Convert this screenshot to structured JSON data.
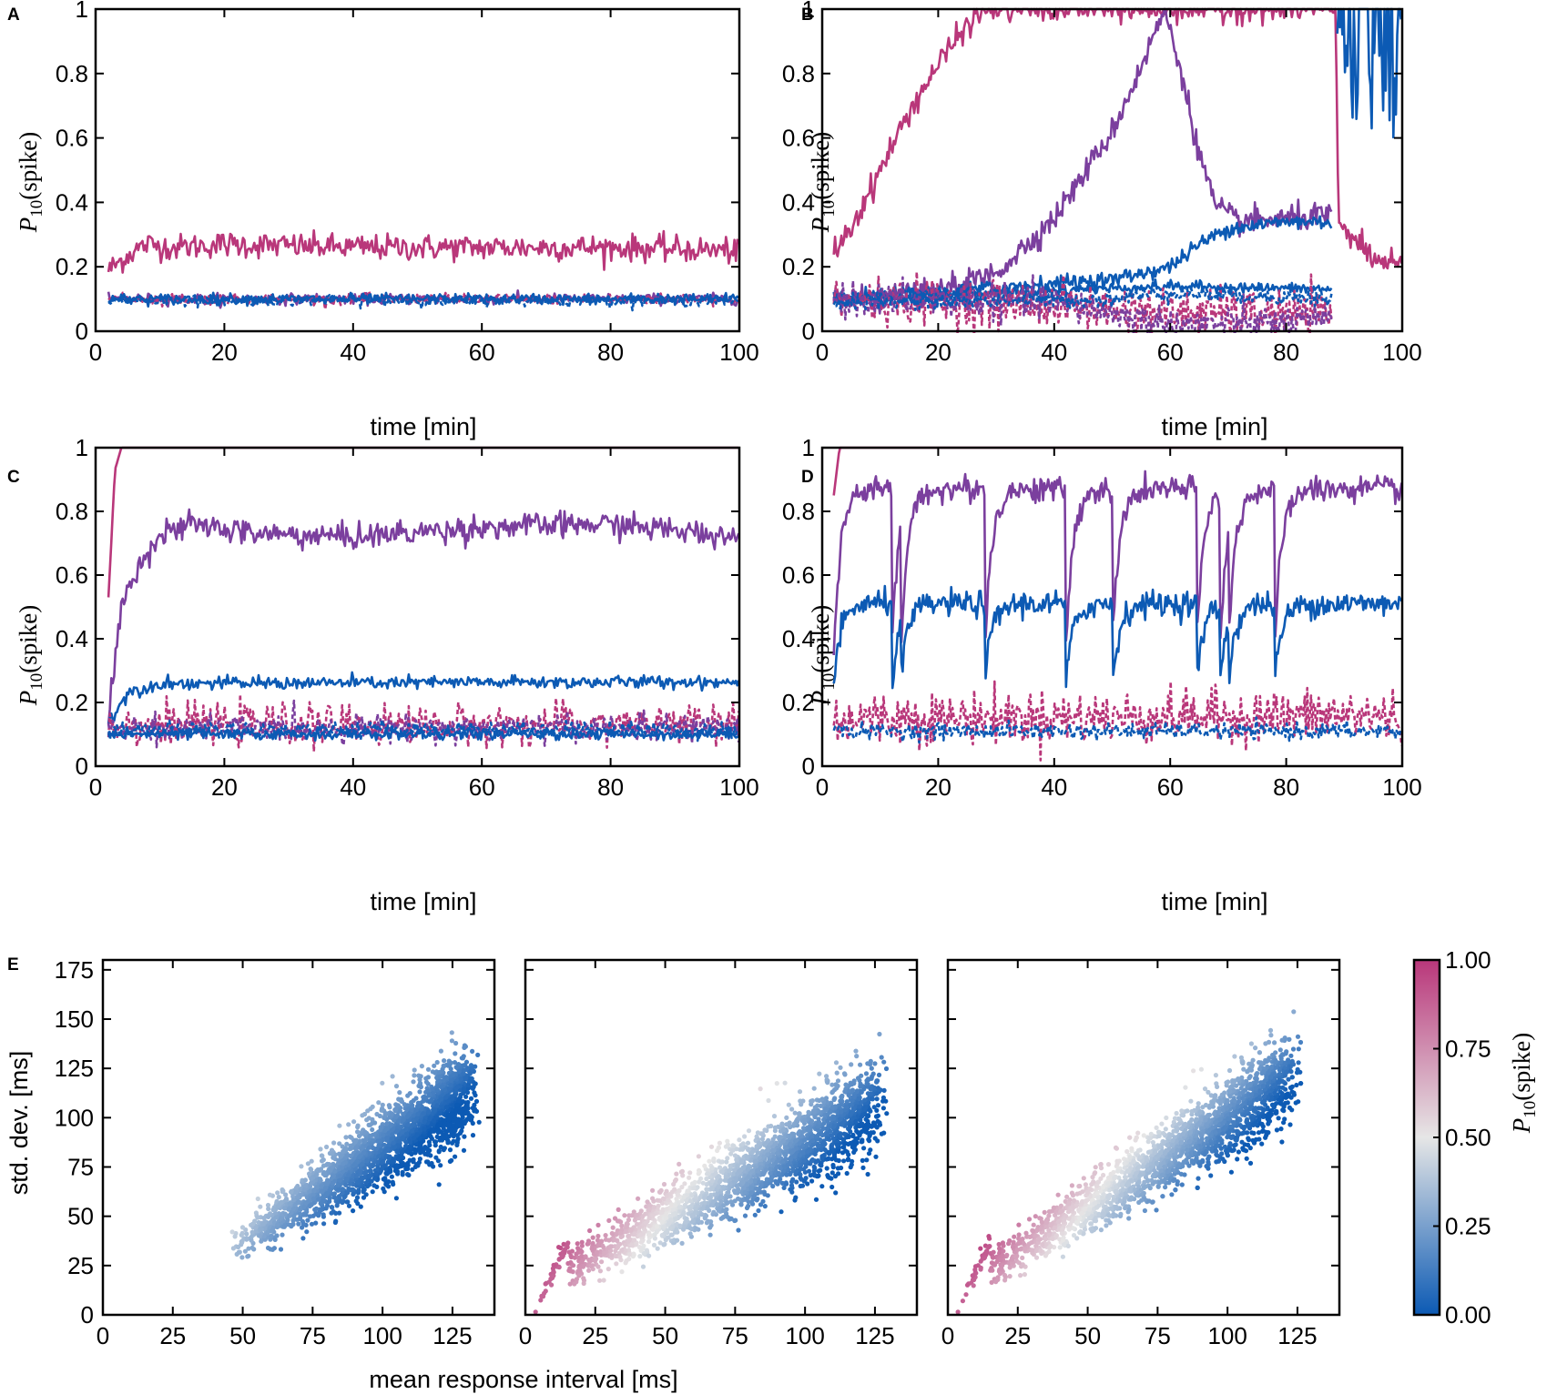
{
  "colors": {
    "magenta": "#b9377a",
    "purple": "#7b3f9e",
    "blue": "#0c5ab4",
    "cmap_low": "#0c5ab4",
    "cmap_mid": "#e6e6e6",
    "cmap_high": "#b9377a"
  },
  "chart_data": [
    {
      "panel": "A",
      "type": "line",
      "xlabel": "time [min]",
      "ylabel_main": "P",
      "ylabel_sub": "10",
      "ylabel_rest": "(spike)",
      "xlim": [
        0,
        100
      ],
      "ylim": [
        0,
        1
      ],
      "xticks": [
        "0",
        "20",
        "40",
        "60",
        "80",
        "100"
      ],
      "yticks": [
        "0",
        "0.2",
        "0.4",
        "0.6",
        "0.8",
        "1"
      ],
      "series": [
        {
          "name": "magenta-solid",
          "color": "magenta",
          "dashed": false,
          "points": [
            [
              2,
              0.19
            ],
            [
              4,
              0.22
            ],
            [
              6,
              0.25
            ],
            [
              8,
              0.27
            ],
            [
              12,
              0.26
            ],
            [
              20,
              0.27
            ],
            [
              40,
              0.26
            ],
            [
              60,
              0.26
            ],
            [
              80,
              0.26
            ],
            [
              100,
              0.25
            ]
          ],
          "noise": 0.02
        },
        {
          "name": "purple-solid",
          "color": "purple",
          "dashed": false,
          "points": [
            [
              2,
              0.1
            ],
            [
              100,
              0.1
            ]
          ],
          "noise": 0.008
        },
        {
          "name": "magenta-dashed",
          "color": "magenta",
          "dashed": true,
          "points": [
            [
              2,
              0.1
            ],
            [
              100,
              0.1
            ]
          ],
          "noise": 0.008
        },
        {
          "name": "blue-solid",
          "color": "blue",
          "dashed": false,
          "points": [
            [
              2,
              0.1
            ],
            [
              100,
              0.1
            ]
          ],
          "noise": 0.008
        },
        {
          "name": "blue-dashed",
          "color": "blue",
          "dashed": true,
          "points": [
            [
              2,
              0.095
            ],
            [
              100,
              0.095
            ]
          ],
          "noise": 0.008
        }
      ]
    },
    {
      "panel": "B",
      "type": "line",
      "xlabel": "time [min]",
      "ylabel_main": "P",
      "ylabel_sub": "10",
      "ylabel_rest": "(spike)",
      "xlim": [
        0,
        100
      ],
      "ylim": [
        0,
        1
      ],
      "xticks": [
        "0",
        "20",
        "40",
        "60",
        "80",
        "100"
      ],
      "yticks": [
        "0",
        "0.2",
        "0.4",
        "0.6",
        "0.8",
        "1"
      ],
      "series": [
        {
          "name": "magenta-solid",
          "color": "magenta",
          "dashed": false,
          "points": [
            [
              2,
              0.25
            ],
            [
              5,
              0.32
            ],
            [
              10,
              0.5
            ],
            [
              15,
              0.68
            ],
            [
              20,
              0.83
            ],
            [
              25,
              0.95
            ],
            [
              28,
              1.0
            ],
            [
              88.5,
              1.0
            ],
            [
              89,
              0.35
            ],
            [
              92,
              0.28
            ],
            [
              95,
              0.22
            ],
            [
              100,
              0.2
            ]
          ],
          "noise": 0.02
        },
        {
          "name": "purple-solid",
          "color": "purple",
          "dashed": false,
          "points": [
            [
              2,
              0.1
            ],
            [
              10,
              0.1
            ],
            [
              20,
              0.12
            ],
            [
              30,
              0.18
            ],
            [
              40,
              0.35
            ],
            [
              50,
              0.62
            ],
            [
              55,
              0.82
            ],
            [
              59,
              1.0
            ],
            [
              62,
              0.8
            ],
            [
              65,
              0.55
            ],
            [
              68,
              0.38
            ],
            [
              72,
              0.34
            ],
            [
              80,
              0.35
            ],
            [
              88,
              0.36
            ]
          ],
          "noise": 0.02
        },
        {
          "name": "blue-solid-high",
          "color": "blue",
          "dashed": false,
          "points": [
            [
              2,
              0.1
            ],
            [
              20,
              0.12
            ],
            [
              40,
              0.15
            ],
            [
              50,
              0.16
            ],
            [
              60,
              0.2
            ],
            [
              65,
              0.27
            ],
            [
              70,
              0.32
            ],
            [
              80,
              0.34
            ],
            [
              88,
              0.34
            ]
          ],
          "noise": 0.012
        },
        {
          "name": "blue-solid-mid",
          "color": "blue",
          "dashed": false,
          "points": [
            [
              2,
              0.1
            ],
            [
              30,
              0.12
            ],
            [
              60,
              0.14
            ],
            [
              88,
              0.13
            ]
          ],
          "noise": 0.008
        },
        {
          "name": "magenta-dashed",
          "color": "magenta",
          "dashed": true,
          "points": [
            [
              2,
              0.1
            ],
            [
              20,
              0.09
            ],
            [
              40,
              0.08
            ],
            [
              60,
              0.06
            ],
            [
              88,
              0.05
            ]
          ],
          "noise": 0.035
        },
        {
          "name": "purple-dashed",
          "color": "purple",
          "dashed": true,
          "points": [
            [
              2,
              0.1
            ],
            [
              40,
              0.09
            ],
            [
              60,
              0.02
            ],
            [
              88,
              0.03
            ]
          ],
          "noise": 0.025
        },
        {
          "name": "blue-dashed",
          "color": "blue",
          "dashed": true,
          "points": [
            [
              2,
              0.09
            ],
            [
              50,
              0.1
            ],
            [
              60,
              0.12
            ],
            [
              88,
              0.1
            ]
          ],
          "noise": 0.012
        },
        {
          "name": "blue-burst",
          "color": "blue",
          "dashed": false,
          "points": [
            [
              88.8,
              0.05
            ],
            [
              89,
              1.0
            ],
            [
              100,
              0.9
            ]
          ],
          "noise": 0.08
        }
      ]
    },
    {
      "panel": "C",
      "type": "line",
      "xlabel": "time [min]",
      "ylabel_main": "P",
      "ylabel_sub": "10",
      "ylabel_rest": "(spike)",
      "xlim": [
        0,
        100
      ],
      "ylim": [
        0,
        1
      ],
      "xticks": [
        "0",
        "20",
        "40",
        "60",
        "80",
        "100"
      ],
      "yticks": [
        "0",
        "0.2",
        "0.4",
        "0.6",
        "0.8",
        "1"
      ],
      "series": [
        {
          "name": "magenta-solid",
          "color": "magenta",
          "dashed": false,
          "points": [
            [
              2,
              0.53
            ],
            [
              3,
              0.93
            ],
            [
              4,
              1.0
            ],
            [
              100,
              1.0
            ]
          ],
          "noise": 0.0
        },
        {
          "name": "purple-solid",
          "color": "purple",
          "dashed": false,
          "points": [
            [
              2,
              0.15
            ],
            [
              4,
              0.5
            ],
            [
              7,
              0.65
            ],
            [
              10,
              0.72
            ],
            [
              15,
              0.76
            ],
            [
              25,
              0.73
            ],
            [
              40,
              0.72
            ],
            [
              60,
              0.75
            ],
            [
              80,
              0.76
            ],
            [
              100,
              0.72
            ]
          ],
          "noise": 0.02
        },
        {
          "name": "blue-solid-high",
          "color": "blue",
          "dashed": false,
          "points": [
            [
              2,
              0.14
            ],
            [
              5,
              0.23
            ],
            [
              10,
              0.26
            ],
            [
              100,
              0.265
            ]
          ],
          "noise": 0.01
        },
        {
          "name": "magenta-dashed",
          "color": "magenta",
          "dashed": true,
          "points": [
            [
              2,
              0.13
            ],
            [
              100,
              0.13
            ]
          ],
          "noise": 0.03
        },
        {
          "name": "purple-dashed",
          "color": "purple",
          "dashed": true,
          "points": [
            [
              2,
              0.12
            ],
            [
              100,
              0.12
            ]
          ],
          "noise": 0.02
        },
        {
          "name": "blue-solid-low",
          "color": "blue",
          "dashed": false,
          "points": [
            [
              2,
              0.1
            ],
            [
              100,
              0.1
            ]
          ],
          "noise": 0.008
        },
        {
          "name": "blue-dashed",
          "color": "blue",
          "dashed": true,
          "points": [
            [
              2,
              0.115
            ],
            [
              100,
              0.115
            ]
          ],
          "noise": 0.012
        }
      ]
    },
    {
      "panel": "D",
      "type": "line",
      "xlabel": "time [min]",
      "ylabel_main": "P",
      "ylabel_sub": "10",
      "ylabel_rest": "(spike)",
      "xlim": [
        0,
        100
      ],
      "ylim": [
        0,
        1
      ],
      "xticks": [
        "0",
        "20",
        "40",
        "60",
        "80",
        "100"
      ],
      "yticks": [
        "0",
        "0.2",
        "0.4",
        "0.6",
        "0.8",
        "1"
      ],
      "resets": [
        12,
        13.5,
        28,
        42,
        50,
        64.5,
        68.5,
        70,
        78
      ],
      "series": [
        {
          "name": "magenta-solid",
          "color": "magenta",
          "dashed": false,
          "points": [
            [
              2,
              0.85
            ],
            [
              3,
              1.0
            ],
            [
              100,
              1.0
            ]
          ],
          "noise": 0.0
        },
        {
          "name": "purple-solid",
          "color": "purple",
          "dashed": false,
          "sawtooth": {
            "start": 0.35,
            "plateau": 0.87
          },
          "noise": 0.02
        },
        {
          "name": "blue-solid",
          "color": "blue",
          "dashed": false,
          "sawtooth": {
            "start": 0.25,
            "plateau": 0.51
          },
          "noise": 0.02
        },
        {
          "name": "magenta-dashed",
          "color": "magenta",
          "dashed": true,
          "points": [
            [
              2,
              0.15
            ],
            [
              100,
              0.16
            ]
          ],
          "noise": 0.04
        },
        {
          "name": "blue-dashed",
          "color": "blue",
          "dashed": true,
          "points": [
            [
              2,
              0.11
            ],
            [
              100,
              0.11
            ]
          ],
          "noise": 0.012
        }
      ]
    },
    {
      "panel": "E",
      "type": "scatter",
      "xlabel": "mean response interval [ms]",
      "ylabel": "std. dev. [ms]",
      "xlim": [
        0,
        140
      ],
      "ylim": [
        0,
        180
      ],
      "xticks": [
        "0",
        "25",
        "50",
        "75",
        "100",
        "125"
      ],
      "yticks": [
        "0",
        "25",
        "50",
        "75",
        "100",
        "125",
        "150",
        "175"
      ],
      "colorbar": {
        "label_main": "P",
        "label_sub": "10",
        "label_rest": "(spike)",
        "ticks": [
          "0.00",
          "0.25",
          "0.50",
          "0.75",
          "1.00"
        ],
        "range": [
          0,
          1
        ]
      },
      "subplots": [
        {
          "name": "E-left",
          "x_range": [
            45,
            130
          ],
          "slope": 0.95,
          "intercept": -10,
          "spread": 12,
          "p_at_low_x": 0.4,
          "p_at_high_x": 0.02,
          "low_tail": false
        },
        {
          "name": "E-middle",
          "x_range": [
            3,
            125
          ],
          "slope": 0.75,
          "intercept": 12,
          "spread": 12,
          "p_at_low_x": 1.0,
          "p_at_high_x": 0.02,
          "low_tail": true
        },
        {
          "name": "E-right",
          "x_range": [
            3,
            122
          ],
          "slope": 0.9,
          "intercept": 10,
          "spread": 11,
          "p_at_low_x": 1.0,
          "p_at_high_x": 0.05,
          "low_tail": true
        }
      ]
    }
  ]
}
